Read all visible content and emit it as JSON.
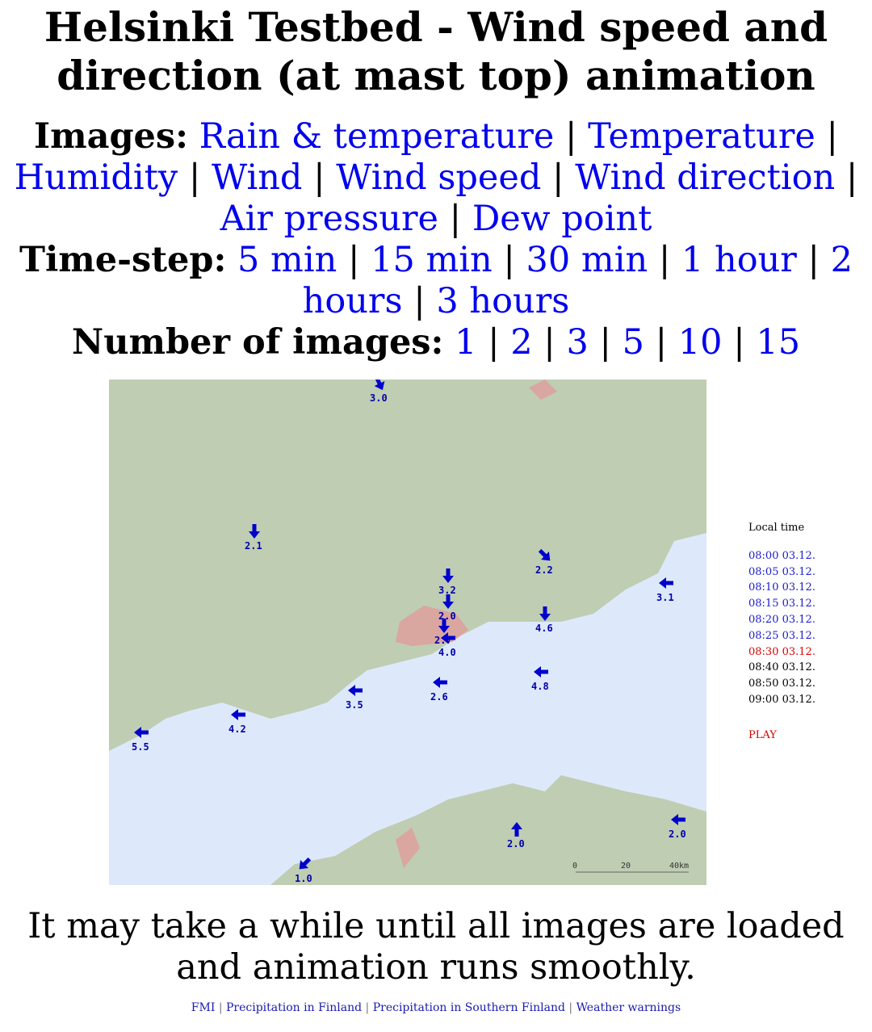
{
  "title": "Helsinki Testbed - Wind speed and direction (at mast top) animation",
  "images": {
    "label": "Images:",
    "links": [
      "Rain & temperature",
      "Temperature",
      "Humidity",
      "Wind",
      "Wind speed",
      "Wind direction",
      "Air pressure",
      "Dew point"
    ]
  },
  "timestep": {
    "label": "Time-step:",
    "links": [
      "5 min",
      "15 min",
      "30 min",
      "1 hour",
      "2 hours",
      "3 hours"
    ]
  },
  "count": {
    "label": "Number of images:",
    "links": [
      "1",
      "2",
      "3",
      "5",
      "10",
      "15"
    ]
  },
  "map": {
    "stations": [
      {
        "v": "3.0"
      },
      {
        "v": "2.1"
      },
      {
        "v": "3.2"
      },
      {
        "v": "2.0"
      },
      {
        "v": "2.7"
      },
      {
        "v": "4.0"
      },
      {
        "v": "2.2"
      },
      {
        "v": "4.6"
      },
      {
        "v": "3.1"
      },
      {
        "v": "4.8"
      },
      {
        "v": "2.6"
      },
      {
        "v": "3.5"
      },
      {
        "v": "4.2"
      },
      {
        "v": "5.5"
      },
      {
        "v": "2.0"
      },
      {
        "v": "2.0"
      },
      {
        "v": "1.0"
      }
    ],
    "scale": [
      "0",
      "20",
      "40km"
    ],
    "colors": {
      "land": "#bfcdb3",
      "sea": "#dde9fb",
      "urban": "#d9a6a0",
      "arrow": "#0000cc"
    }
  },
  "times": {
    "header": "Local time",
    "items": [
      {
        "t": "08:00 03.12.",
        "state": "loaded"
      },
      {
        "t": "08:05 03.12.",
        "state": "loaded"
      },
      {
        "t": "08:10 03.12.",
        "state": "loaded"
      },
      {
        "t": "08:15 03.12.",
        "state": "loaded"
      },
      {
        "t": "08:20 03.12.",
        "state": "loaded"
      },
      {
        "t": "08:25 03.12.",
        "state": "loaded"
      },
      {
        "t": "08:30 03.12.",
        "state": "current"
      },
      {
        "t": "08:40 03.12.",
        "state": "pending"
      },
      {
        "t": "08:50 03.12.",
        "state": "pending"
      },
      {
        "t": "09:00 03.12.",
        "state": "pending"
      }
    ],
    "play": "PLAY"
  },
  "note": "It may take a while until all images are loaded and animation runs smoothly.",
  "footer": [
    "FMI",
    "Precipitation in Finland",
    "Precipitation in Southern Finland",
    "Weather warnings"
  ]
}
